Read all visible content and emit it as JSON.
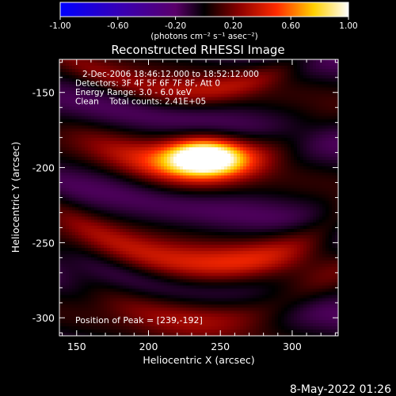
{
  "chart_data": {
    "type": "heatmap",
    "title": "Reconstructed RHESSI Image",
    "xlabel": "Heliocentric X (arcsec)",
    "ylabel": "Heliocentric Y (arcsec)",
    "xlim": [
      138,
      332
    ],
    "ylim": [
      -312,
      -128
    ],
    "x_ticks": [
      150,
      200,
      250,
      300
    ],
    "y_ticks": [
      -300,
      -250,
      -200,
      -150
    ],
    "colorbar": {
      "ticks": [
        "-1.00",
        "-0.60",
        "-0.20",
        "0.20",
        "0.60",
        "1.00"
      ],
      "tick_values": [
        -1.0,
        -0.6,
        -0.2,
        0.2,
        0.6,
        1.0
      ],
      "unit_label": "(photons cm⁻² s⁻¹ asec⁻²)",
      "colormap": [
        "#0000ff",
        "#000000",
        "#ff0000",
        "#ffff00",
        "#ffffff"
      ]
    },
    "annotations": [
      "2-Dec-2006 18:46:12.000 to 18:52:12.000",
      "Detectors: 3F 4F 5F 6F 7F 8F, Att 0",
      "Energy Range: 3.0 - 6.0 keV",
      "Clean    Total counts: 2.41E+05"
    ],
    "peak_label": "Position of Peak = [239,-192]",
    "peak": {
      "x": 239,
      "y": -192,
      "value": 1.0
    },
    "features": [
      {
        "name": "peak-source",
        "x": 239,
        "y": -192,
        "sx": 18,
        "sy": 8,
        "value": 1.0
      },
      {
        "name": "mid-arc",
        "x": 230,
        "y": -200,
        "sx": 45,
        "sy": 10,
        "value": 0.5
      },
      {
        "name": "upper-arc",
        "x": 225,
        "y": -150,
        "sx": 60,
        "sy": 7,
        "value": 0.3
      },
      {
        "name": "lower-arc",
        "x": 240,
        "y": -265,
        "sx": 70,
        "sy": 9,
        "value": 0.42
      },
      {
        "name": "bottom-arc",
        "x": 240,
        "y": -300,
        "sx": 65,
        "sy": 9,
        "value": 0.28
      }
    ],
    "background_value": -0.05
  },
  "footer": {
    "timestamp": "8-May-2022 01:26"
  }
}
